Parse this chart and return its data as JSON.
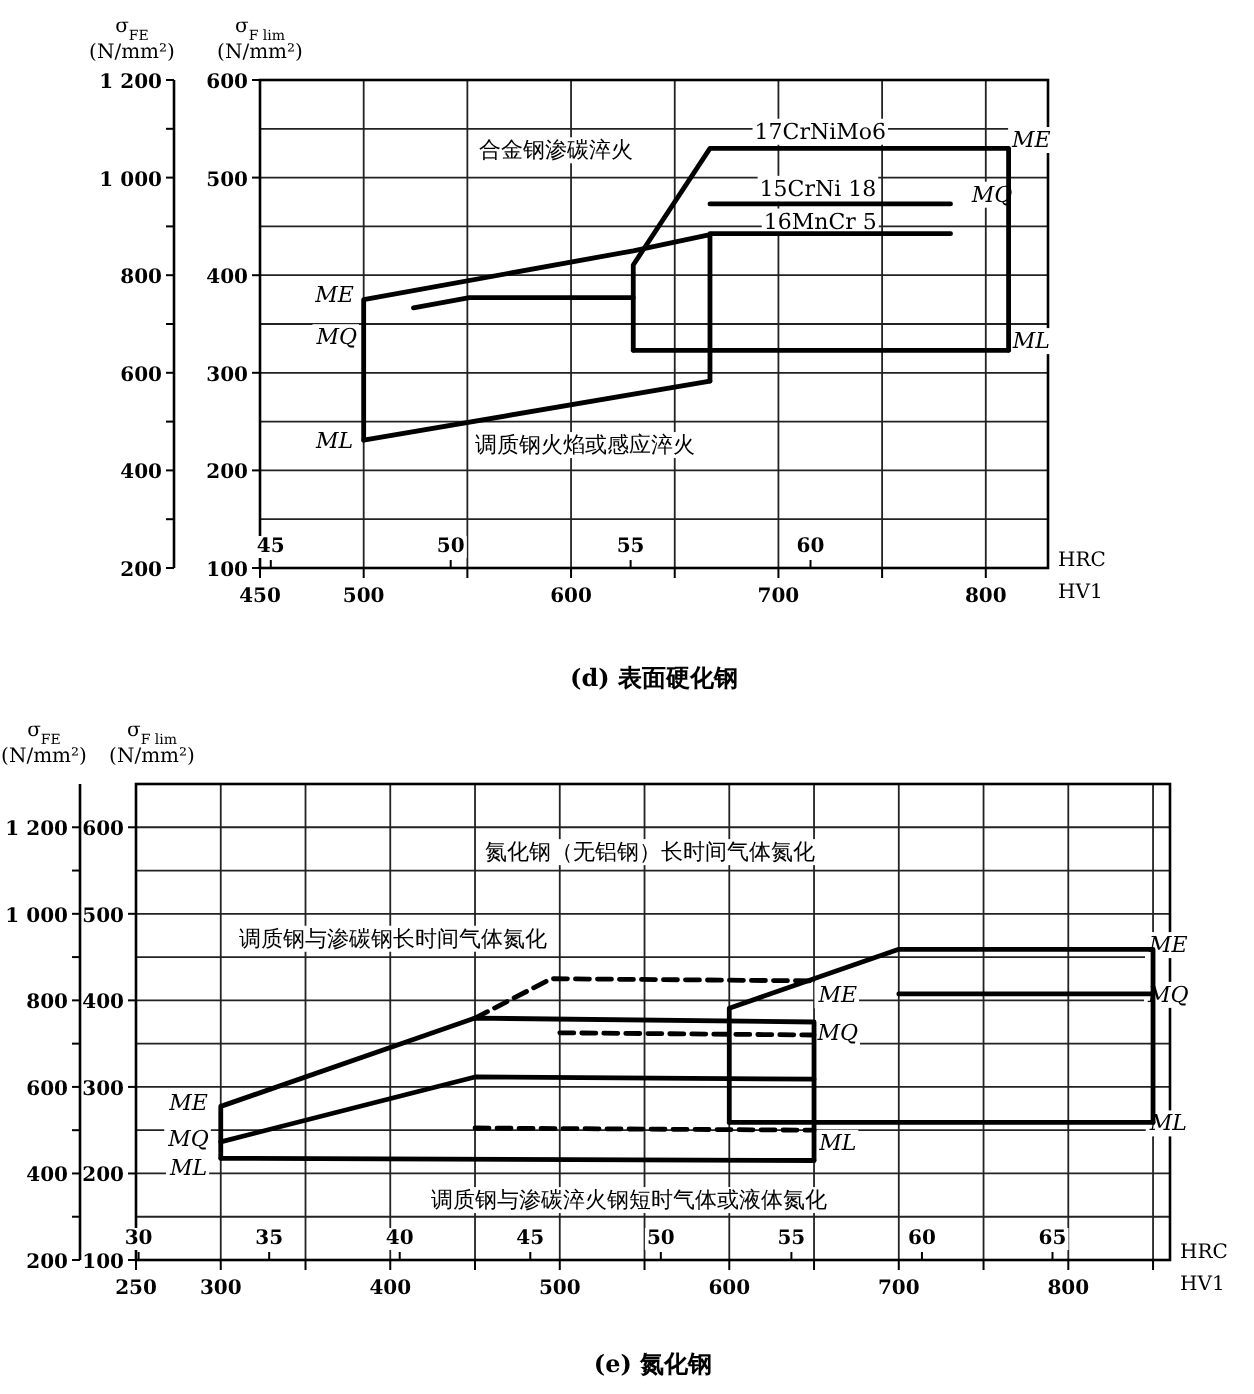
{
  "chart_data": [
    {
      "type": "line",
      "title": "(d) 表面硬化钢",
      "xlabel": "HV1",
      "x2label": "HRC",
      "ylabel": "σ$_{FE}$ (N/mm²)",
      "y2label": "σ$_{F lim}$ (N/mm²)",
      "grid": true,
      "xlim": [
        450,
        830
      ],
      "xticks": [
        450,
        500,
        {
          "value": 550,
          "label": null
        },
        600,
        {
          "value": 650,
          "label": null
        },
        700,
        {
          "value": 750,
          "label": null
        },
        800
      ],
      "x2lim": [
        44.7,
        66.6
      ],
      "x2ticks": [
        45,
        50,
        55,
        60
      ],
      "ylim": [
        200,
        1200
      ],
      "yticks": [
        200,
        {
          "value": 300,
          "label": null
        },
        400,
        {
          "value": 500,
          "label": null
        },
        600,
        {
          "value": 700,
          "label": null
        },
        800,
        {
          "value": 900,
          "label": null
        },
        {
          "value": 1000,
          "label": "1 000"
        },
        {
          "value": 1100,
          "label": null
        },
        {
          "value": 1200,
          "label": "1 200"
        }
      ],
      "y2lim": [
        100,
        600
      ],
      "y2ticks": [
        100,
        200,
        300,
        400,
        500,
        600
      ],
      "series": [
        {
          "color": "#000000",
          "line_style": "solid",
          "x": [
            500,
            500,
            630,
            667,
            667
          ],
          "values": [
            462,
            750,
            850,
            883,
            583
          ]
        },
        {
          "color": "#000000",
          "line_style": "solid",
          "x": [
            500,
            667
          ],
          "values": [
            462,
            583
          ]
        },
        {
          "color": "#000000",
          "line_style": "solid",
          "x": [
            524,
            551,
            630
          ],
          "values": [
            733,
            754,
            754
          ]
        },
        {
          "color": "#000000",
          "line_style": "solid",
          "x": [
            630,
            630,
            667,
            811,
            811
          ],
          "values": [
            646,
            821,
            1060,
            1060,
            646
          ]
        },
        {
          "color": "#000000",
          "line_style": "solid",
          "x": [
            630,
            811
          ],
          "values": [
            646,
            646
          ]
        },
        {
          "color": "#000000",
          "line_style": "solid",
          "x": [
            667,
            783
          ],
          "values": [
            946,
            946
          ]
        },
        {
          "color": "#000000",
          "line_style": "solid",
          "x": [
            667,
            783
          ],
          "values": [
            885,
            885
          ]
        }
      ],
      "annotations": [
        {
          "text": "ME",
          "x": 486,
          "y": 762
        },
        {
          "text": "MQ",
          "x": 487,
          "y": 675
        },
        {
          "text": "ML",
          "x": 486,
          "y": 462
        },
        {
          "text": "ME",
          "x": 822,
          "y": 1079
        },
        {
          "text": "MQ",
          "x": 803,
          "y": 967
        },
        {
          "text": "ML",
          "x": 822,
          "y": 667
        },
        "合金钢渗碳淬火",
        "17CrNiMo6",
        "15CrNi 18",
        "16MnCr 5",
        "调质钢火焰或感应淬火"
      ]
    },
    {
      "type": "line",
      "title": "(e) 氮化钢",
      "xlabel": "HV1",
      "x2label": "HRC",
      "ylabel": "σ$_{FE}$ (N/mm²)",
      "y2label": "σ$_{F lim}$ (N/mm²)",
      "grid": true,
      "xlim": [
        250,
        860
      ],
      "xticks": [
        250,
        300,
        {
          "value": 350,
          "label": null
        },
        400,
        {
          "value": 450,
          "label": null
        },
        500,
        {
          "value": 550,
          "label": null
        },
        600,
        {
          "value": 650,
          "label": null
        },
        700,
        {
          "value": 750,
          "label": null
        },
        800,
        {
          "value": 850,
          "label": null
        }
      ],
      "x2lim": [
        29.9,
        69.5
      ],
      "x2ticks": [
        30,
        35,
        40,
        45,
        50,
        55,
        60,
        65
      ],
      "ylim": [
        200,
        1300
      ],
      "yticks": [
        200,
        {
          "value": 300,
          "label": null
        },
        400,
        {
          "value": 500,
          "label": null
        },
        600,
        {
          "value": 700,
          "label": null
        },
        800,
        {
          "value": 900,
          "label": null
        },
        {
          "value": 1000,
          "label": "1 000"
        },
        {
          "value": 1100,
          "label": null
        },
        {
          "value": 1200,
          "label": "1 200"
        }
      ],
      "y2lim": [
        100,
        650
      ],
      "y2ticks": [
        100,
        200,
        300,
        400,
        500,
        600
      ],
      "series": [
        {
          "color": "#000000",
          "line_style": "solid",
          "x": [
            300,
            300,
            450,
            650,
            650
          ],
          "values": [
            435,
            555,
            759,
            750,
            430
          ]
        },
        {
          "color": "#000000",
          "line_style": "solid",
          "x": [
            300,
            650
          ],
          "values": [
            435,
            430
          ]
        },
        {
          "color": "#000000",
          "line_style": "solid",
          "x": [
            300,
            450,
            650
          ],
          "values": [
            473,
            623,
            618
          ]
        },
        {
          "color": "#000000",
          "line_style": "dashed",
          "x": [
            450,
            495,
            650
          ],
          "values": [
            759,
            850,
            845
          ]
        },
        {
          "color": "#000000",
          "line_style": "dashed",
          "x": [
            500,
            650
          ],
          "values": [
            725,
            720
          ]
        },
        {
          "color": "#000000",
          "line_style": "dashed",
          "x": [
            450,
            650
          ],
          "values": [
            505,
            500
          ]
        },
        {
          "color": "#000000",
          "line_style": "solid",
          "x": [
            600,
            600,
            700,
            850,
            850
          ],
          "values": [
            518,
            782,
            918,
            918,
            518
          ]
        },
        {
          "color": "#000000",
          "line_style": "solid",
          "x": [
            600,
            850
          ],
          "values": [
            518,
            518
          ]
        },
        {
          "color": "#000000",
          "line_style": "solid",
          "x": [
            700,
            850
          ],
          "values": [
            815,
            815
          ]
        }
      ],
      "annotations": [
        {
          "text": "ME",
          "x": 281,
          "y": 564
        },
        {
          "text": "MQ",
          "x": 281,
          "y": 482
        },
        {
          "text": "ML",
          "x": 281,
          "y": 414
        },
        {
          "text": "ME",
          "x": 664,
          "y": 814
        },
        {
          "text": "MQ",
          "x": 664,
          "y": 727
        },
        {
          "text": "ML",
          "x": 664,
          "y": 473
        },
        {
          "text": "ME",
          "x": 859,
          "y": 930
        },
        {
          "text": "MQ",
          "x": 859,
          "y": 815
        },
        {
          "text": "ML",
          "x": 859,
          "y": 518
        },
        "氮化钢（无铝钢）长时间气体氮化",
        "调质钢与渗碳钢长时间气体氮化",
        "调质钢与渗碳淬火钢短时气体或液体氮化"
      ]
    }
  ]
}
